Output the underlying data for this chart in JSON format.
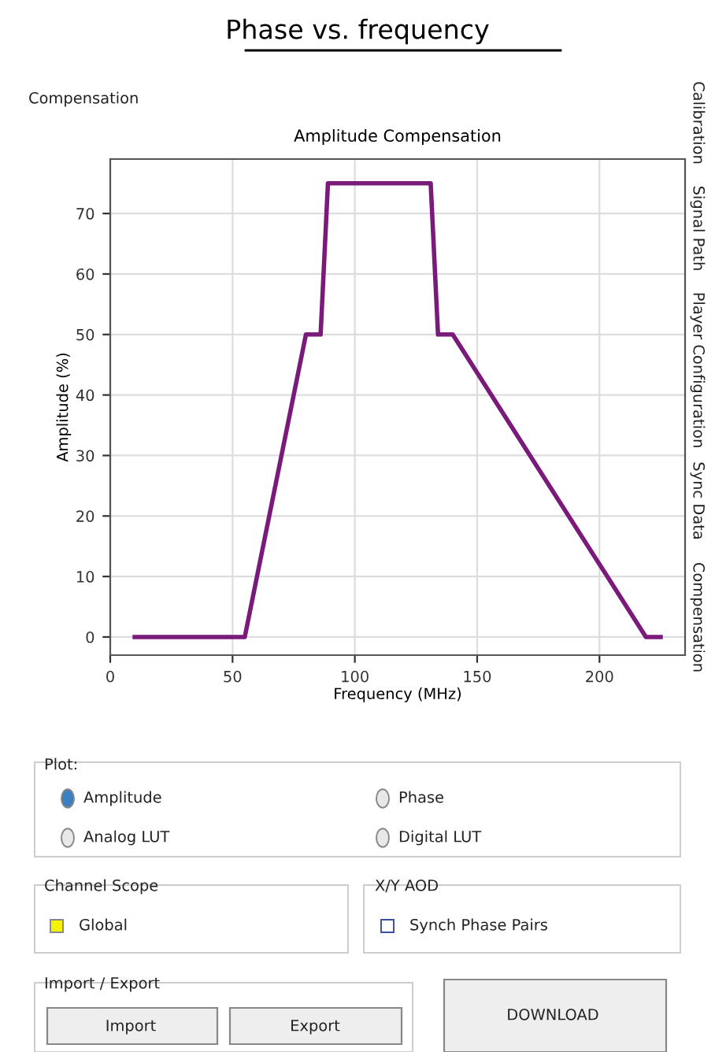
{
  "chart_data": {
    "type": "line",
    "title": "Amplitude Compensation",
    "subtitle": "Phase vs. frequency",
    "xlabel": "Frequency (MHz)",
    "ylabel": "Amplitude (%)",
    "x": [
      10,
      55,
      80,
      86,
      89,
      131,
      134,
      140,
      219,
      225
    ],
    "series": [
      {
        "color": "#7a1a7a",
        "values": [
          0,
          0,
          50,
          50,
          75,
          75,
          50,
          50,
          0,
          0
        ]
      }
    ],
    "xlim": [
      0,
      235
    ],
    "xticks": [
      0,
      50,
      100,
      150,
      200
    ],
    "ylim": [
      -3,
      79
    ],
    "yticks": [
      0,
      10,
      20,
      30,
      40,
      50,
      60,
      70
    ],
    "grid": true,
    "legend": false,
    "marker": "none",
    "line_style": "solid",
    "annotations": [
      "Compensation",
      "Calibration",
      "Signal Path",
      "Player Configuration",
      "Sync Data",
      "Compensation",
      "Plot:",
      "Amplitude",
      "Phase",
      "Analog LUT",
      "Digital LUT",
      "Channel Scope",
      "Global",
      "X/Y AOD",
      "Synch Phase Pairs",
      "Import / Export",
      "Import",
      "Export",
      "DOWNLOAD"
    ]
  }
}
